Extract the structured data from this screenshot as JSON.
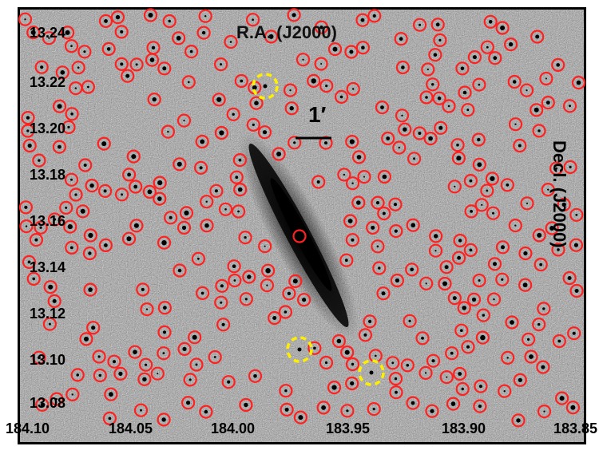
{
  "image": {
    "title": "R.A. (J2000)",
    "ylabel": "Decl. (J2000)",
    "scale_bar_label": "1′",
    "y_ticks": [
      "13.24",
      "13.22",
      "13.20",
      "13.18",
      "13.16",
      "13.14",
      "13.12",
      "13.10",
      "13.08"
    ],
    "x_ticks": [
      "184.10",
      "184.05",
      "184.00",
      "183.95",
      "183.90",
      "183.85"
    ],
    "colors": {
      "background_noise": "#9a9a9a",
      "marker": "#ff2020",
      "highlight": "#ffee00",
      "galaxy": "#000000"
    },
    "content": "Grayscale astronomical image of an edge-on spiral galaxy with red circles marking detected sources and three yellow dashed circles marking highlighted objects"
  }
}
